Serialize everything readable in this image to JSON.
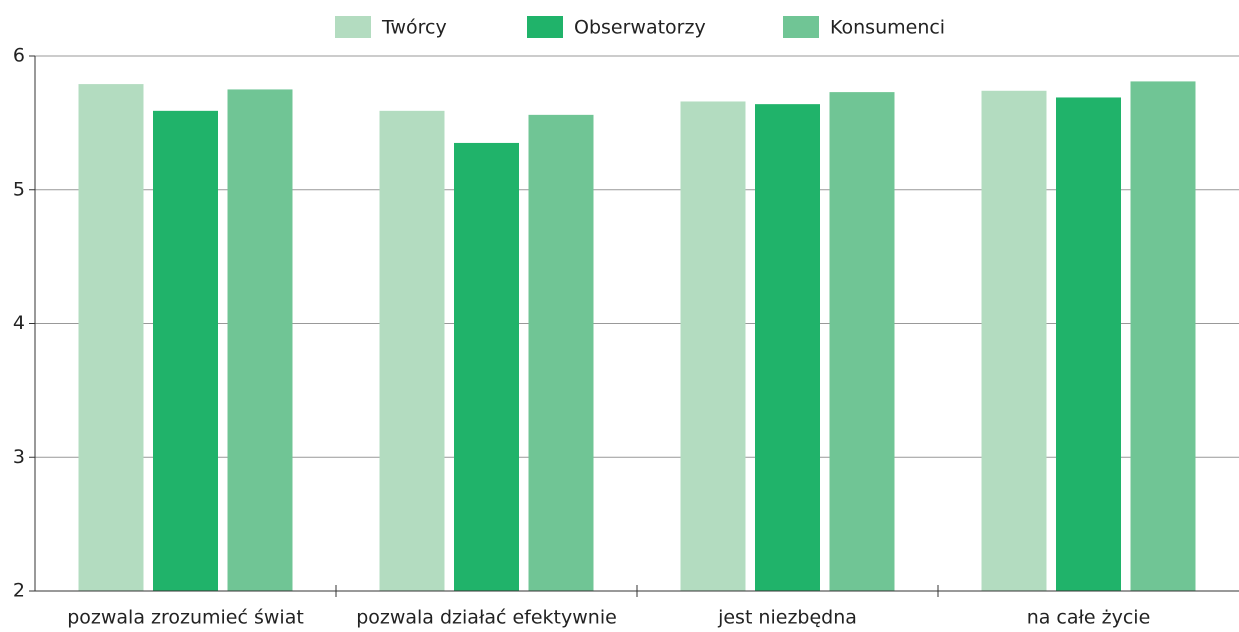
{
  "chart_data": {
    "type": "bar",
    "categories": [
      "pozwala zrozumieć świat",
      "pozwala działać efektywnie",
      "jest niezbędna",
      "na całe życie"
    ],
    "series": [
      {
        "name": "Twórcy",
        "color": "#b3dcc0",
        "values": [
          5.79,
          5.59,
          5.66,
          5.74
        ]
      },
      {
        "name": "Obserwatorzy",
        "color": "#20b36a",
        "values": [
          5.59,
          5.35,
          5.64,
          5.69
        ]
      },
      {
        "name": "Konsumenci",
        "color": "#70c595",
        "values": [
          5.75,
          5.56,
          5.73,
          5.81
        ]
      }
    ],
    "ylim": [
      2,
      6
    ],
    "yticks": [
      2,
      3,
      4,
      5,
      6
    ],
    "grid": true,
    "legend": "top"
  }
}
